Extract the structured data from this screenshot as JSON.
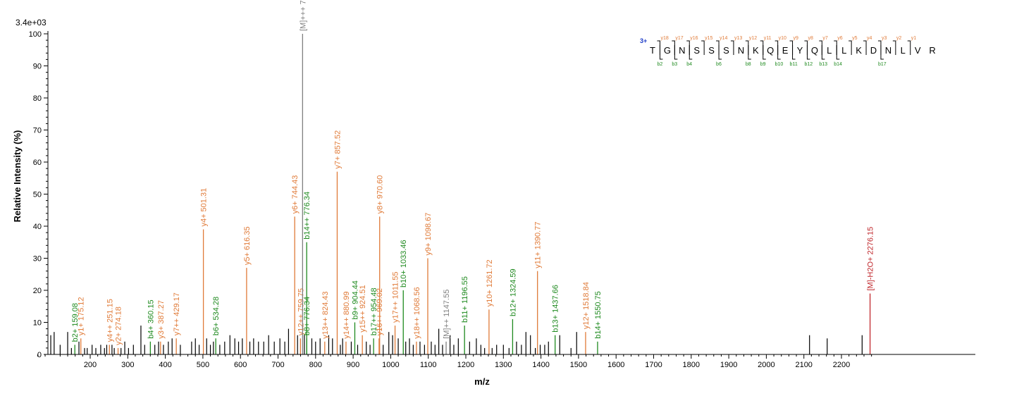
{
  "chart_data": {
    "type": "bar",
    "scale_label": "3.4e+03",
    "xlabel": "m/z",
    "ylabel": "Relative   Intensity (%)",
    "xlim": [
      60,
      2290
    ],
    "ylim": [
      0,
      100
    ],
    "x_ticks": [
      "200",
      "300",
      "400",
      "500",
      "600",
      "700",
      "800",
      "900",
      "1000",
      "1100",
      "1200",
      "1300",
      "1400",
      "1500",
      "1600",
      "1700",
      "1800",
      "1900",
      "2000",
      "2100",
      "2200"
    ],
    "y_ticks": [
      "0",
      "10",
      "20",
      "30",
      "40",
      "50",
      "60",
      "70",
      "80",
      "90",
      "100"
    ],
    "colors": {
      "y_ion": "#E07B39",
      "b_ion": "#1F8A1F",
      "precursor": "#808080",
      "neutral_loss": "#C0282D",
      "unassigned": "#000000",
      "charge_label": "#1E3CC8"
    },
    "annotated_peaks": [
      {
        "label": "b2+ 159.08",
        "mz": 159.08,
        "intensity": 3,
        "ion": "b"
      },
      {
        "label": "y1+ 175.12",
        "mz": 175.12,
        "intensity": 5,
        "ion": "y"
      },
      {
        "label": "y4++ 251.15",
        "mz": 251.15,
        "intensity": 3,
        "ion": "y"
      },
      {
        "label": "y2+ 274.18",
        "mz": 274.18,
        "intensity": 2,
        "ion": "y"
      },
      {
        "label": "b4+ 360.15",
        "mz": 360.15,
        "intensity": 4,
        "ion": "b"
      },
      {
        "label": "y3+ 387.27",
        "mz": 387.27,
        "intensity": 4,
        "ion": "y"
      },
      {
        "label": "y7++ 429.17",
        "mz": 429.17,
        "intensity": 5,
        "ion": "y"
      },
      {
        "label": "y4+ 501.31",
        "mz": 501.31,
        "intensity": 39,
        "ion": "y"
      },
      {
        "label": "b6+ 534.28",
        "mz": 534.28,
        "intensity": 5,
        "ion": "b"
      },
      {
        "label": "y5+ 616.35",
        "mz": 616.35,
        "intensity": 27,
        "ion": "y"
      },
      {
        "label": "y6+ 744.43",
        "mz": 744.43,
        "intensity": 43,
        "ion": "y"
      },
      {
        "label": "y12++ 759.75",
        "mz": 759.75,
        "intensity": 5,
        "ion": "y"
      },
      {
        "label": "[M]+++ 765.40",
        "mz": 765.4,
        "intensity": 100,
        "ion": "precursor"
      },
      {
        "label": "b14++ 776.34",
        "mz": 776.34,
        "intensity": 35,
        "ion": "b"
      },
      {
        "label": "b8+ 776.34",
        "mz": 776.34,
        "intensity": 5,
        "ion": "b"
      },
      {
        "label": "y13++ 824.43",
        "mz": 824.43,
        "intensity": 4,
        "ion": "y"
      },
      {
        "label": "y7+ 857.52",
        "mz": 857.52,
        "intensity": 57,
        "ion": "y"
      },
      {
        "label": "y14++ 880.99",
        "mz": 880.99,
        "intensity": 4,
        "ion": "y"
      },
      {
        "label": "b9+ 904.44",
        "mz": 904.44,
        "intensity": 10,
        "ion": "b"
      },
      {
        "label": "y15++ 924.51",
        "mz": 924.51,
        "intensity": 6,
        "ion": "y"
      },
      {
        "label": "b17++ 954.48",
        "mz": 954.48,
        "intensity": 5,
        "ion": "b"
      },
      {
        "label": "y16++ 969.02",
        "mz": 969.02,
        "intensity": 5,
        "ion": "y"
      },
      {
        "label": "y8+ 970.60",
        "mz": 970.6,
        "intensity": 43,
        "ion": "y"
      },
      {
        "label": "y17++ 1011.55",
        "mz": 1011.55,
        "intensity": 9,
        "ion": "y"
      },
      {
        "label": "b10+ 1033.46",
        "mz": 1033.46,
        "intensity": 20,
        "ion": "b"
      },
      {
        "label": "y18++ 1068.56",
        "mz": 1068.56,
        "intensity": 4,
        "ion": "y"
      },
      {
        "label": "y9+ 1098.67",
        "mz": 1098.67,
        "intensity": 30,
        "ion": "y"
      },
      {
        "label": "[M]++ 1147.55",
        "mz": 1147.55,
        "intensity": 4,
        "ion": "precursor"
      },
      {
        "label": "b11+ 1196.55",
        "mz": 1196.55,
        "intensity": 9,
        "ion": "b"
      },
      {
        "label": "y10+ 1261.72",
        "mz": 1261.72,
        "intensity": 14,
        "ion": "y"
      },
      {
        "label": "b12+ 1324.59",
        "mz": 1324.59,
        "intensity": 11,
        "ion": "b"
      },
      {
        "label": "y11+ 1390.77",
        "mz": 1390.77,
        "intensity": 26,
        "ion": "y"
      },
      {
        "label": "b13+ 1437.66",
        "mz": 1437.66,
        "intensity": 6,
        "ion": "b"
      },
      {
        "label": "y12+ 1518.84",
        "mz": 1518.84,
        "intensity": 7,
        "ion": "y"
      },
      {
        "label": "b14+ 1550.75",
        "mz": 1550.75,
        "intensity": 4,
        "ion": "b"
      },
      {
        "label": "[M]-H2O+ 2276.15",
        "mz": 2276.15,
        "intensity": 19,
        "ion": "neutral_loss"
      }
    ],
    "unassigned_peaks": [
      {
        "mz": 95,
        "intensity": 6
      },
      {
        "mz": 104,
        "intensity": 7
      },
      {
        "mz": 120,
        "intensity": 3
      },
      {
        "mz": 140,
        "intensity": 7
      },
      {
        "mz": 150,
        "intensity": 2
      },
      {
        "mz": 170,
        "intensity": 4
      },
      {
        "mz": 185,
        "intensity": 2
      },
      {
        "mz": 192,
        "intensity": 2
      },
      {
        "mz": 205,
        "intensity": 3
      },
      {
        "mz": 215,
        "intensity": 2
      },
      {
        "mz": 228,
        "intensity": 3
      },
      {
        "mz": 238,
        "intensity": 2
      },
      {
        "mz": 244,
        "intensity": 3
      },
      {
        "mz": 258,
        "intensity": 3
      },
      {
        "mz": 264,
        "intensity": 2
      },
      {
        "mz": 282,
        "intensity": 2
      },
      {
        "mz": 292,
        "intensity": 4
      },
      {
        "mz": 302,
        "intensity": 2
      },
      {
        "mz": 315,
        "intensity": 3
      },
      {
        "mz": 335,
        "intensity": 9
      },
      {
        "mz": 345,
        "intensity": 3
      },
      {
        "mz": 372,
        "intensity": 3
      },
      {
        "mz": 382,
        "intensity": 4
      },
      {
        "mz": 395,
        "intensity": 3
      },
      {
        "mz": 408,
        "intensity": 4
      },
      {
        "mz": 418,
        "intensity": 5
      },
      {
        "mz": 440,
        "intensity": 3
      },
      {
        "mz": 470,
        "intensity": 4
      },
      {
        "mz": 480,
        "intensity": 5
      },
      {
        "mz": 490,
        "intensity": 3
      },
      {
        "mz": 510,
        "intensity": 5
      },
      {
        "mz": 520,
        "intensity": 3
      },
      {
        "mz": 528,
        "intensity": 4
      },
      {
        "mz": 545,
        "intensity": 3
      },
      {
        "mz": 558,
        "intensity": 4
      },
      {
        "mz": 572,
        "intensity": 6
      },
      {
        "mz": 585,
        "intensity": 5
      },
      {
        "mz": 595,
        "intensity": 4
      },
      {
        "mz": 605,
        "intensity": 5
      },
      {
        "mz": 625,
        "intensity": 4
      },
      {
        "mz": 635,
        "intensity": 5
      },
      {
        "mz": 648,
        "intensity": 4
      },
      {
        "mz": 662,
        "intensity": 4
      },
      {
        "mz": 675,
        "intensity": 6
      },
      {
        "mz": 690,
        "intensity": 4
      },
      {
        "mz": 705,
        "intensity": 5
      },
      {
        "mz": 718,
        "intensity": 4
      },
      {
        "mz": 728,
        "intensity": 8
      },
      {
        "mz": 752,
        "intensity": 6
      },
      {
        "mz": 770,
        "intensity": 6
      },
      {
        "mz": 790,
        "intensity": 5
      },
      {
        "mz": 800,
        "intensity": 4
      },
      {
        "mz": 812,
        "intensity": 5
      },
      {
        "mz": 835,
        "intensity": 6
      },
      {
        "mz": 845,
        "intensity": 5
      },
      {
        "mz": 866,
        "intensity": 3
      },
      {
        "mz": 872,
        "intensity": 5
      },
      {
        "mz": 895,
        "intensity": 4
      },
      {
        "mz": 912,
        "intensity": 3
      },
      {
        "mz": 935,
        "intensity": 4
      },
      {
        "mz": 945,
        "intensity": 3
      },
      {
        "mz": 980,
        "intensity": 3
      },
      {
        "mz": 995,
        "intensity": 7
      },
      {
        "mz": 1005,
        "intensity": 6
      },
      {
        "mz": 1020,
        "intensity": 5
      },
      {
        "mz": 1040,
        "intensity": 4
      },
      {
        "mz": 1050,
        "intensity": 5
      },
      {
        "mz": 1060,
        "intensity": 3
      },
      {
        "mz": 1078,
        "intensity": 4
      },
      {
        "mz": 1090,
        "intensity": 3
      },
      {
        "mz": 1108,
        "intensity": 4
      },
      {
        "mz": 1118,
        "intensity": 3
      },
      {
        "mz": 1128,
        "intensity": 8
      },
      {
        "mz": 1138,
        "intensity": 3
      },
      {
        "mz": 1158,
        "intensity": 6
      },
      {
        "mz": 1168,
        "intensity": 3
      },
      {
        "mz": 1180,
        "intensity": 5
      },
      {
        "mz": 1210,
        "intensity": 4
      },
      {
        "mz": 1228,
        "intensity": 5
      },
      {
        "mz": 1240,
        "intensity": 3
      },
      {
        "mz": 1250,
        "intensity": 2
      },
      {
        "mz": 1270,
        "intensity": 2
      },
      {
        "mz": 1282,
        "intensity": 3
      },
      {
        "mz": 1300,
        "intensity": 3
      },
      {
        "mz": 1315,
        "intensity": 2
      },
      {
        "mz": 1335,
        "intensity": 4
      },
      {
        "mz": 1348,
        "intensity": 3
      },
      {
        "mz": 1360,
        "intensity": 7
      },
      {
        "mz": 1372,
        "intensity": 6
      },
      {
        "mz": 1385,
        "intensity": 2
      },
      {
        "mz": 1398,
        "intensity": 3
      },
      {
        "mz": 1410,
        "intensity": 3
      },
      {
        "mz": 1420,
        "intensity": 4
      },
      {
        "mz": 1450,
        "intensity": 6
      },
      {
        "mz": 1480,
        "intensity": 2
      },
      {
        "mz": 1495,
        "intensity": 7
      },
      {
        "mz": 2115,
        "intensity": 6
      },
      {
        "mz": 2162,
        "intensity": 5
      },
      {
        "mz": 2255,
        "intensity": 6
      }
    ],
    "sequence": {
      "charge": "3+",
      "residues": [
        "T",
        "G",
        "N",
        "S",
        "S",
        "S",
        "N",
        "K",
        "Q",
        "E",
        "Y",
        "Q",
        "L",
        "L",
        "K",
        "D",
        "N",
        "L",
        "V",
        "R"
      ],
      "y_ions": [
        {
          "gap": 1,
          "label": "y18"
        },
        {
          "gap": 2,
          "label": "y17"
        },
        {
          "gap": 3,
          "label": "y16"
        },
        {
          "gap": 4,
          "label": "y15"
        },
        {
          "gap": 5,
          "label": "y14"
        },
        {
          "gap": 6,
          "label": "y13"
        },
        {
          "gap": 7,
          "label": "y12"
        },
        {
          "gap": 8,
          "label": "y11"
        },
        {
          "gap": 9,
          "label": "y10"
        },
        {
          "gap": 10,
          "label": "y9"
        },
        {
          "gap": 11,
          "label": "y8"
        },
        {
          "gap": 12,
          "label": "y7"
        },
        {
          "gap": 13,
          "label": "y6"
        },
        {
          "gap": 14,
          "label": "y5"
        },
        {
          "gap": 15,
          "label": "y4"
        },
        {
          "gap": 16,
          "label": "y3"
        },
        {
          "gap": 17,
          "label": "y2"
        },
        {
          "gap": 18,
          "label": "y1"
        }
      ],
      "b_ions": [
        {
          "gap": 1,
          "label": "b2"
        },
        {
          "gap": 2,
          "label": "b3"
        },
        {
          "gap": 3,
          "label": "b4"
        },
        {
          "gap": 5,
          "label": "b6"
        },
        {
          "gap": 7,
          "label": "b8"
        },
        {
          "gap": 8,
          "label": "b9"
        },
        {
          "gap": 9,
          "label": "b10"
        },
        {
          "gap": 10,
          "label": "b11"
        },
        {
          "gap": 11,
          "label": "b12"
        },
        {
          "gap": 12,
          "label": "b13"
        },
        {
          "gap": 13,
          "label": "b14"
        },
        {
          "gap": 16,
          "label": "b17"
        }
      ]
    }
  }
}
